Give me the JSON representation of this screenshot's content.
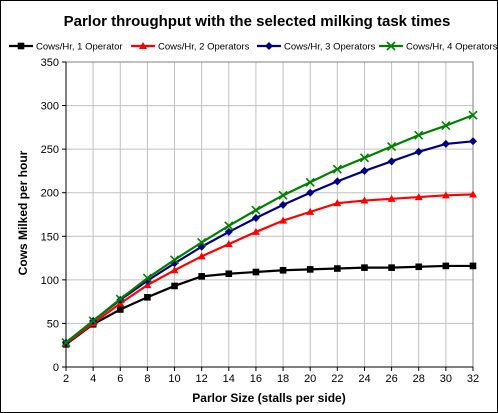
{
  "chart_data": {
    "type": "line",
    "title": "Parlor throughput with the selected milking task times",
    "xlabel": "Parlor Size (stalls per side)",
    "ylabel": "Cows Milked per hour",
    "x": [
      2,
      4,
      6,
      8,
      10,
      12,
      14,
      16,
      18,
      20,
      22,
      24,
      26,
      28,
      30,
      32
    ],
    "xlim": [
      2,
      32
    ],
    "ylim": [
      0,
      350
    ],
    "yticks": [
      0,
      50,
      100,
      150,
      200,
      250,
      300,
      350
    ],
    "grid": "vertical and horizontal",
    "legend_position": "top",
    "series": [
      {
        "name": "Cows/Hr, 1 Operator",
        "color": "#000000",
        "marker": "square",
        "values": [
          26,
          49,
          66,
          80,
          93,
          104,
          107,
          109,
          111,
          112,
          113,
          114,
          114,
          115,
          116,
          116
        ]
      },
      {
        "name": "Cows/Hr, 2 Operators",
        "color": "#ff0000",
        "marker": "triangle",
        "values": [
          27,
          50,
          73,
          94,
          111,
          127,
          141,
          155,
          168,
          178,
          188,
          191,
          193,
          195,
          197,
          198
        ]
      },
      {
        "name": "Cows/Hr, 3 Operators",
        "color": "#000080",
        "marker": "diamond",
        "values": [
          28,
          53,
          77,
          99,
          119,
          138,
          155,
          171,
          186,
          200,
          213,
          225,
          236,
          247,
          256,
          259
        ]
      },
      {
        "name": "Cows/Hr, 4 Operators",
        "color": "#008000",
        "marker": "x",
        "values": [
          28,
          53,
          78,
          102,
          123,
          143,
          162,
          180,
          197,
          212,
          227,
          240,
          253,
          266,
          277,
          289
        ]
      }
    ]
  }
}
